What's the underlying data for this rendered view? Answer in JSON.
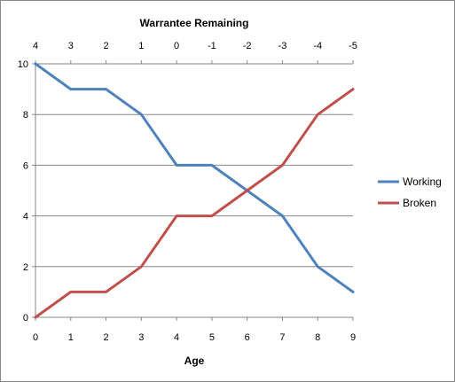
{
  "chart_data": {
    "type": "line",
    "title": "",
    "xlabel": "Age",
    "ylabel": "",
    "x": [
      0,
      1,
      2,
      3,
      4,
      5,
      6,
      7,
      8,
      9
    ],
    "xlim": [
      0,
      9
    ],
    "ylim": [
      0,
      10
    ],
    "x_ticks": [
      "0",
      "1",
      "2",
      "3",
      "4",
      "5",
      "6",
      "7",
      "8",
      "9"
    ],
    "y_ticks": [
      "0",
      "2",
      "4",
      "6",
      "8",
      "10"
    ],
    "y_tick_values": [
      0,
      2,
      4,
      6,
      8,
      10
    ],
    "secondary_x_axis": {
      "label": "Warrantee Remaining",
      "position": "top",
      "ticks": [
        "4",
        "3",
        "2",
        "1",
        "0",
        "-1",
        "-2",
        "-3",
        "-4",
        "-5"
      ]
    },
    "grid": {
      "horizontal": true,
      "vertical": false
    },
    "legend_position": "right",
    "series": [
      {
        "name": "Working",
        "color": "#4f81bd",
        "values": [
          10,
          9,
          9,
          8,
          6,
          6,
          5,
          4,
          2,
          1
        ]
      },
      {
        "name": "Broken",
        "color": "#c0504d",
        "values": [
          0,
          1,
          1,
          2,
          4,
          4,
          5,
          6,
          8,
          9
        ]
      }
    ]
  }
}
